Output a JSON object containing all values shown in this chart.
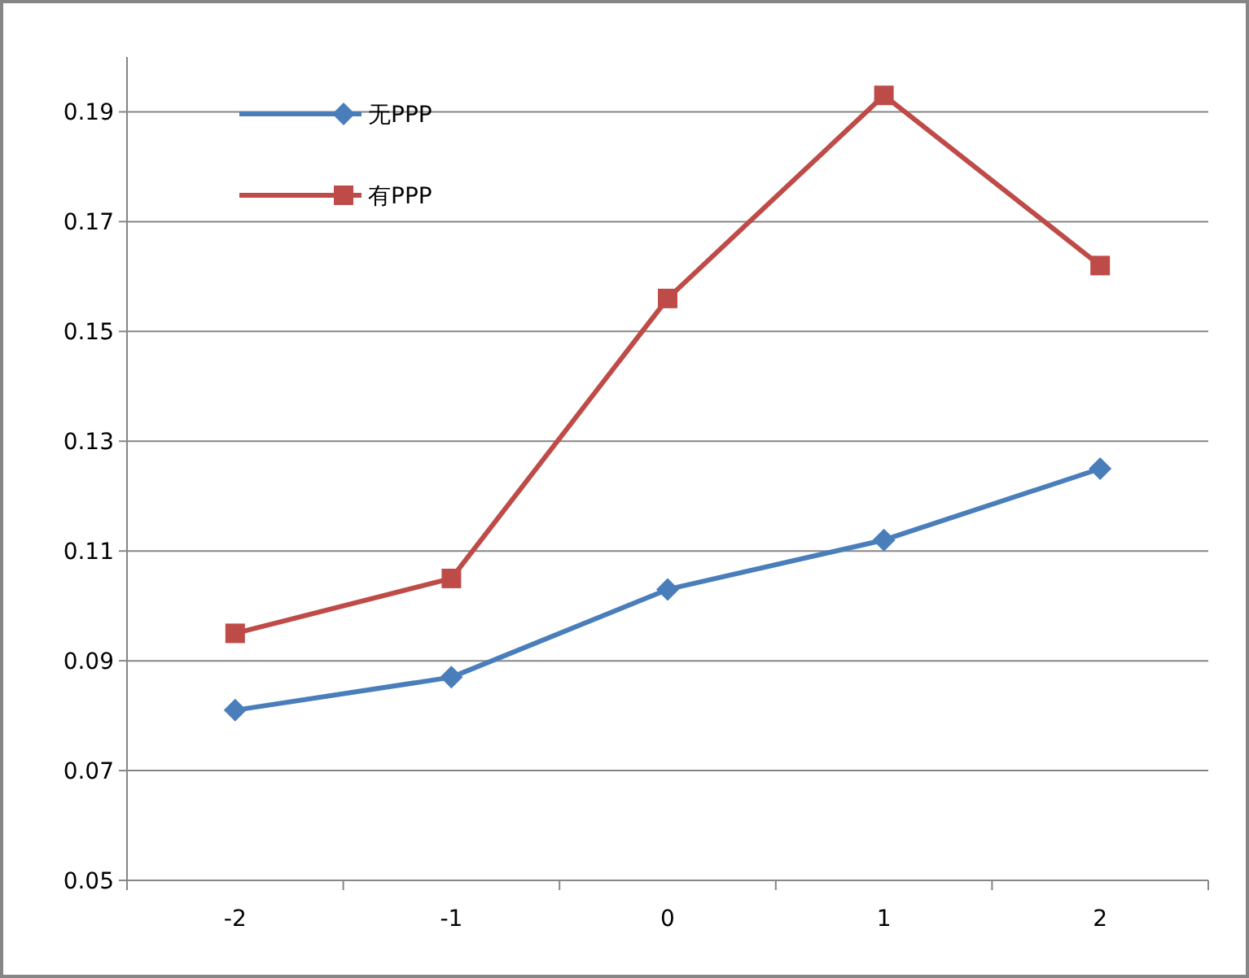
{
  "chart_data": {
    "type": "line",
    "categories": [
      "-2",
      "-1",
      "0",
      "1",
      "2"
    ],
    "series": [
      {
        "name": "无PPP",
        "color": "#4a7ebb",
        "marker": "diamond",
        "values": [
          0.081,
          0.087,
          0.103,
          0.112,
          0.125
        ]
      },
      {
        "name": "有PPP",
        "color": "#be4b48",
        "marker": "square",
        "values": [
          0.095,
          0.105,
          0.156,
          0.193,
          0.162
        ]
      }
    ],
    "ylim": [
      0.05,
      0.2
    ],
    "yticks": [
      0.05,
      0.07,
      0.09,
      0.11,
      0.13,
      0.15,
      0.17,
      0.19
    ],
    "grid": "y",
    "legend": "top left"
  }
}
